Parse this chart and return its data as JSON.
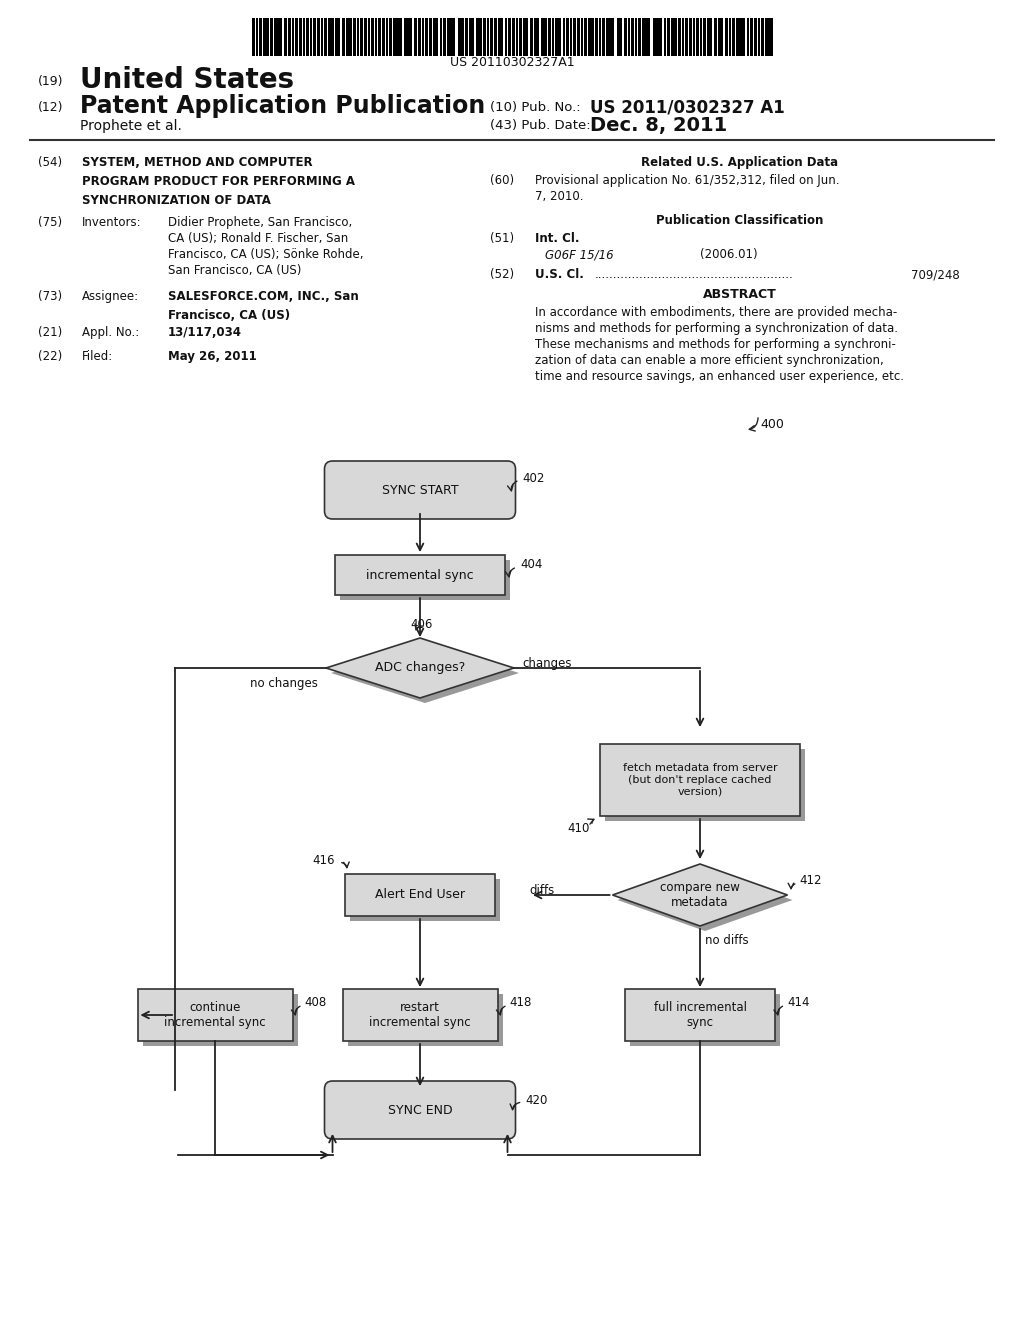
{
  "background_color": "#ffffff",
  "barcode_text": "US 20110302327A1",
  "patent_number": "US 2011/0302327 A1",
  "pub_date": "Dec. 8, 2011",
  "inventors_line1": "Didier Prophete, San Francisco,",
  "inventors_line2": "CA (US); Ronald F. Fischer, San",
  "inventors_line3": "Francisco, CA (US); Sönke Rohde,",
  "inventors_line4": "San Francisco, CA (US)",
  "assignee_line1": "SALESFORCE.COM, INC., San",
  "assignee_line2": "Francisco, CA (US)",
  "appl_no": "13/117,034",
  "filed": "May 26, 2011",
  "related_app_line1": "Provisional application No. 61/352,312, filed on Jun.",
  "related_app_line2": "7, 2010.",
  "int_cl": "G06F 15/16",
  "int_cl_year": "(2006.01)",
  "us_cl": "709/248",
  "abstract_lines": [
    "In accordance with embodiments, there are provided mecha-",
    "nisms and methods for performing a synchronization of data.",
    "These mechanisms and methods for performing a synchroni-",
    "zation of data can enable a more efficient synchronization,",
    "time and resource savings, an enhanced user experience, etc."
  ],
  "shadow_color": "#999999",
  "box_fill": "#d8d8d8",
  "box_edge": "#333333",
  "text_color": "#111111",
  "line_color": "#222222"
}
